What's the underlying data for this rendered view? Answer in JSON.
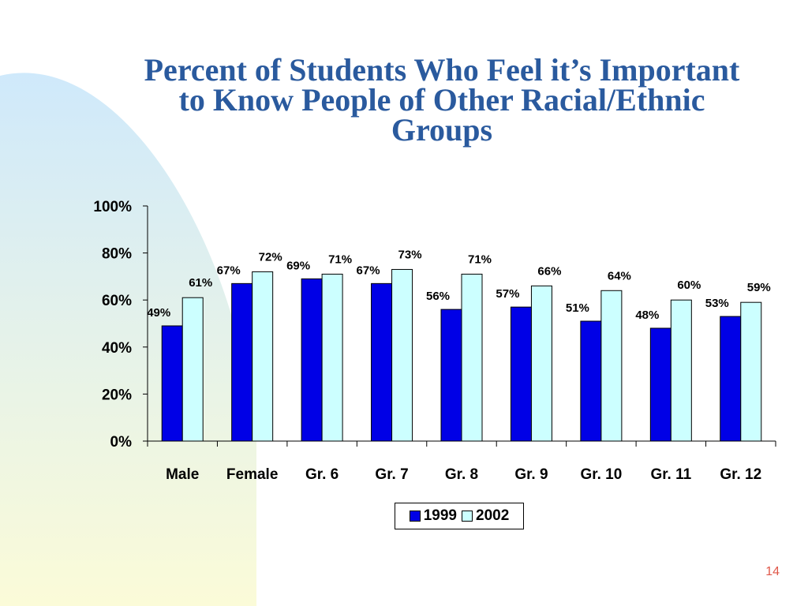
{
  "slide": {
    "title_lines": [
      "Percent of Students Who Feel it’s Important",
      "to Know People of Other Racial/Ethnic",
      "Groups"
    ],
    "page_number": "14"
  },
  "colors": {
    "series_1999": "#0000e6",
    "series_2002": "#ccffff",
    "title": "#2a5a9e",
    "page_number": "#e0584a",
    "background_shape_top": "#cfe9fb",
    "background_shape_bottom": "#fbfbd8"
  },
  "chart_data": {
    "type": "bar",
    "title": "",
    "xlabel": "",
    "ylabel": "",
    "ylim": [
      0,
      100
    ],
    "y_ticks": [
      "0%",
      "20%",
      "40%",
      "60%",
      "80%",
      "100%"
    ],
    "y_tick_values": [
      0,
      20,
      40,
      60,
      80,
      100
    ],
    "categories": [
      "Male",
      "Female",
      "Gr. 6",
      "Gr. 7",
      "Gr. 8",
      "Gr. 9",
      "Gr. 10",
      "Gr. 11",
      "Gr. 12"
    ],
    "series": [
      {
        "name": "1999",
        "values": [
          49,
          67,
          69,
          67,
          56,
          57,
          51,
          48,
          53
        ],
        "labels": [
          "49%",
          "67%",
          "69%",
          "67%",
          "56%",
          "57%",
          "51%",
          "48%",
          "53%"
        ]
      },
      {
        "name": "2002",
        "values": [
          61,
          72,
          71,
          73,
          71,
          66,
          64,
          60,
          59
        ],
        "labels": [
          "61%",
          "72%",
          "71%",
          "73%",
          "71%",
          "66%",
          "64%",
          "60%",
          "59%"
        ]
      }
    ],
    "grid": false,
    "legend_position": "bottom"
  }
}
